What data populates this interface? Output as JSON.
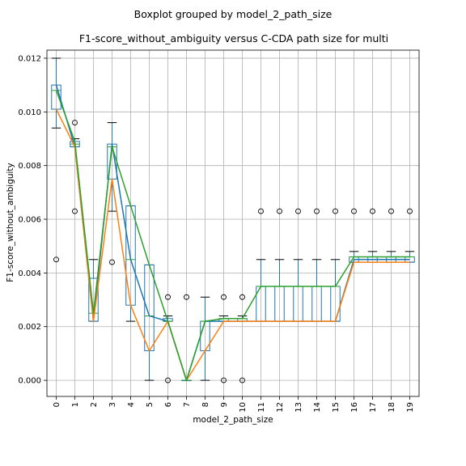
{
  "chart_data": {
    "type": "box",
    "suptitle": "Boxplot grouped by model_2_path_size",
    "title": "F1-score_without_ambiguity versus C-CDA path size for multi",
    "xlabel": "model_2_path_size",
    "ylabel": "F1-score_without_ambiguity",
    "categories": [
      "0",
      "1",
      "2",
      "3",
      "4",
      "5",
      "6",
      "7",
      "8",
      "9",
      "10",
      "11",
      "12",
      "13",
      "14",
      "15",
      "16",
      "17",
      "18",
      "19"
    ],
    "ylim": [
      -0.0006,
      0.0123
    ],
    "yticks": [
      0.0,
      0.002,
      0.004,
      0.006,
      0.008,
      0.01,
      0.012
    ],
    "ytick_labels": [
      "0.000",
      "0.002",
      "0.004",
      "0.006",
      "0.008",
      "0.010",
      "0.012"
    ],
    "grid": true,
    "colors": {
      "box": "#1f77b4",
      "median": "#2ca02c",
      "whisker_cap": "#000000",
      "line_blue": "#1f77b4",
      "line_orange": "#ff7f0e",
      "line_green": "#2ca02c"
    },
    "boxes": [
      {
        "q1": 0.0101,
        "median": 0.0108,
        "q3": 0.011,
        "whislo": 0.0094,
        "whishi": 0.012,
        "fliers": [
          0.0045
        ]
      },
      {
        "q1": 0.0087,
        "median": 0.0088,
        "q3": 0.0089,
        "whislo": 0.0087,
        "whishi": 0.009,
        "fliers": [
          0.0096,
          0.0063
        ]
      },
      {
        "q1": 0.0022,
        "median": 0.0025,
        "q3": 0.0038,
        "whislo": 0.0022,
        "whishi": 0.0045,
        "fliers": []
      },
      {
        "q1": 0.0075,
        "median": 0.0087,
        "q3": 0.0088,
        "whislo": 0.0063,
        "whishi": 0.0096,
        "fliers": [
          0.0044
        ]
      },
      {
        "q1": 0.0028,
        "median": 0.0045,
        "q3": 0.0065,
        "whislo": 0.0022,
        "whishi": 0.0065,
        "fliers": []
      },
      {
        "q1": 0.0011,
        "median": 0.0024,
        "q3": 0.0043,
        "whislo": 0.0,
        "whishi": 0.0043,
        "fliers": []
      },
      {
        "q1": 0.0022,
        "median": 0.0022,
        "q3": 0.0023,
        "whislo": 0.0022,
        "whishi": 0.0024,
        "fliers": [
          0.0031,
          0.0
        ]
      },
      {
        "q1": 0.0,
        "median": 0.0,
        "q3": 0.0,
        "whislo": 0.0,
        "whishi": 0.0,
        "fliers": [
          0.0031
        ]
      },
      {
        "q1": 0.0011,
        "median": 0.0022,
        "q3": 0.0022,
        "whislo": 0.0,
        "whishi": 0.0031,
        "fliers": []
      },
      {
        "q1": 0.0022,
        "median": 0.0023,
        "q3": 0.0023,
        "whislo": 0.0022,
        "whishi": 0.0024,
        "fliers": [
          0.0031,
          0.0
        ]
      },
      {
        "q1": 0.0022,
        "median": 0.0023,
        "q3": 0.0023,
        "whislo": 0.0022,
        "whishi": 0.0024,
        "fliers": [
          0.0031,
          0.0
        ]
      },
      {
        "q1": 0.0022,
        "median": 0.0035,
        "q3": 0.0035,
        "whislo": 0.0022,
        "whishi": 0.0045,
        "fliers": [
          0.0063
        ]
      },
      {
        "q1": 0.0022,
        "median": 0.0035,
        "q3": 0.0035,
        "whislo": 0.0022,
        "whishi": 0.0045,
        "fliers": [
          0.0063
        ]
      },
      {
        "q1": 0.0022,
        "median": 0.0035,
        "q3": 0.0035,
        "whislo": 0.0022,
        "whishi": 0.0045,
        "fliers": [
          0.0063
        ]
      },
      {
        "q1": 0.0022,
        "median": 0.0035,
        "q3": 0.0035,
        "whislo": 0.0022,
        "whishi": 0.0045,
        "fliers": [
          0.0063
        ]
      },
      {
        "q1": 0.0022,
        "median": 0.0035,
        "q3": 0.0035,
        "whislo": 0.0022,
        "whishi": 0.0045,
        "fliers": [
          0.0063
        ]
      },
      {
        "q1": 0.0044,
        "median": 0.0046,
        "q3": 0.0046,
        "whislo": 0.0044,
        "whishi": 0.0048,
        "fliers": [
          0.0063
        ]
      },
      {
        "q1": 0.0044,
        "median": 0.0046,
        "q3": 0.0046,
        "whislo": 0.0044,
        "whishi": 0.0048,
        "fliers": [
          0.0063
        ]
      },
      {
        "q1": 0.0044,
        "median": 0.0046,
        "q3": 0.0046,
        "whislo": 0.0044,
        "whishi": 0.0048,
        "fliers": [
          0.0063
        ]
      },
      {
        "q1": 0.0044,
        "median": 0.0046,
        "q3": 0.0046,
        "whislo": 0.0044,
        "whishi": 0.0048,
        "fliers": [
          0.0063
        ]
      }
    ],
    "series": [
      {
        "color": "#1f77b4",
        "values": [
          0.011,
          0.0087,
          0.0022,
          0.0088,
          0.0045,
          0.0024,
          0.0022,
          0.0,
          0.0022,
          0.0022,
          0.0022,
          0.0022,
          0.0022,
          0.0022,
          0.0022,
          0.0022,
          0.0045,
          0.0045,
          0.0045,
          0.0045
        ]
      },
      {
        "color": "#ff7f0e",
        "values": [
          0.0101,
          0.0087,
          0.0022,
          0.0075,
          0.0028,
          0.0011,
          0.0022,
          0.0,
          0.0011,
          0.0022,
          0.0022,
          0.0022,
          0.0022,
          0.0022,
          0.0022,
          0.0022,
          0.0044,
          0.0044,
          0.0044,
          0.0044
        ]
      },
      {
        "color": "#2ca02c",
        "values": [
          0.0108,
          0.0089,
          0.0025,
          0.0087,
          0.0065,
          0.0043,
          0.0022,
          0.0,
          0.0022,
          0.0023,
          0.0023,
          0.0035,
          0.0035,
          0.0035,
          0.0035,
          0.0035,
          0.0046,
          0.0046,
          0.0046,
          0.0046
        ]
      }
    ]
  }
}
